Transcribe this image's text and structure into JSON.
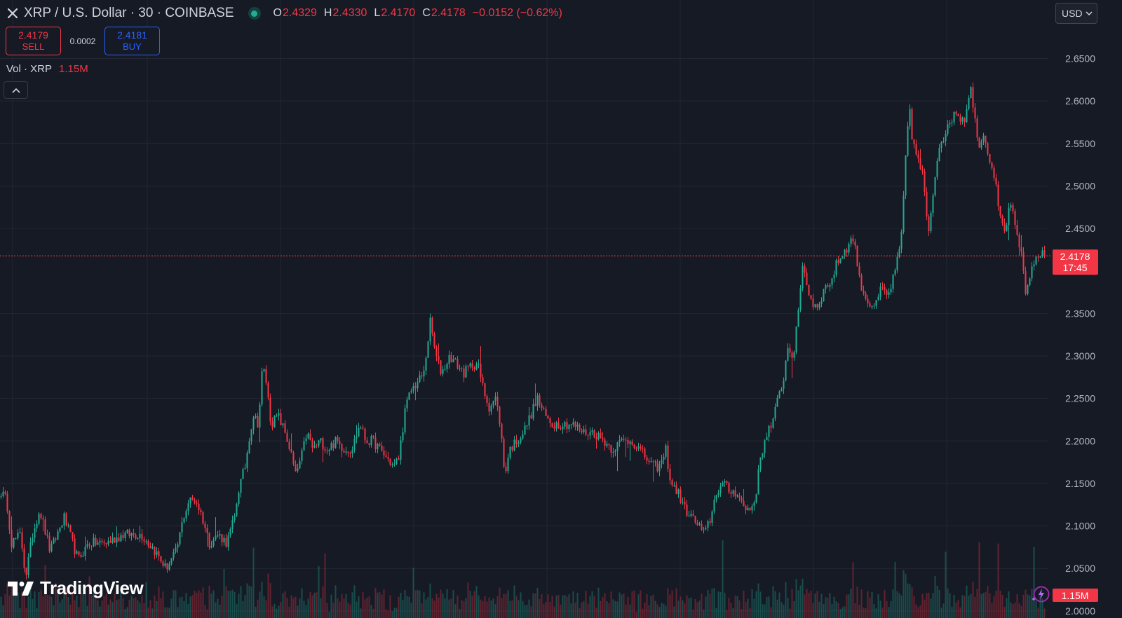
{
  "header": {
    "symbol_title": "XRP / U.S. Dollar · 30 · COINBASE",
    "ohlc": [
      {
        "key": "O",
        "value": "2.4329"
      },
      {
        "key": "H",
        "value": "2.4330"
      },
      {
        "key": "L",
        "value": "2.4170"
      },
      {
        "key": "C",
        "value": "2.4178"
      }
    ],
    "change": "−0.0152 (−0.62%)"
  },
  "trade": {
    "sell_price": "2.4179",
    "sell_label": "SELL",
    "spread": "0.0002",
    "buy_price": "2.4181",
    "buy_label": "BUY"
  },
  "volume": {
    "label": "Vol · XRP",
    "value": "1.15M"
  },
  "currency": "USD",
  "price_axis": {
    "ticks": [
      "2.6500",
      "2.6000",
      "2.5500",
      "2.5000",
      "2.4500",
      "2.3500",
      "2.3000",
      "2.2500",
      "2.2000",
      "2.1500",
      "2.1000",
      "2.0500",
      "2.0000"
    ],
    "current_price": "2.4178",
    "countdown": "17:45",
    "volume_badge": "1.15M"
  },
  "branding": "TradingView",
  "colors": {
    "background": "#161a25",
    "up": "#22ab94",
    "down": "#f23645",
    "buy": "#2962ff",
    "grid": "#232733"
  },
  "icons": {
    "symbol": "x-logo-icon",
    "status": "live-dot-icon",
    "collapse": "chevron-up-icon",
    "currency": "chevron-down-icon",
    "assistant": "bolt-icon"
  },
  "chart_data": {
    "type": "candlestick",
    "title": "XRP / U.S. Dollar · 30 · COINBASE",
    "ylim": [
      1.99,
      2.69
    ],
    "y_ticks": [
      2.0,
      2.05,
      2.1,
      2.15,
      2.2,
      2.25,
      2.3,
      2.35,
      2.45,
      2.5,
      2.55,
      2.6,
      2.65
    ],
    "current_price": 2.4178,
    "series": [
      {
        "name": "XRP",
        "anchors_close": [
          [
            0,
            2.14
          ],
          [
            8,
            2.13
          ],
          [
            15,
            2.08
          ],
          [
            28,
            2.09
          ],
          [
            35,
            2.04
          ],
          [
            45,
            2.09
          ],
          [
            55,
            2.12
          ],
          [
            70,
            2.07
          ],
          [
            90,
            2.11
          ],
          [
            110,
            2.06
          ],
          [
            125,
            2.08
          ],
          [
            150,
            2.08
          ],
          [
            175,
            2.09
          ],
          [
            200,
            2.09
          ],
          [
            220,
            2.07
          ],
          [
            235,
            2.05
          ],
          [
            250,
            2.07
          ],
          [
            260,
            2.11
          ],
          [
            268,
            2.13
          ],
          [
            278,
            2.13
          ],
          [
            287,
            2.11
          ],
          [
            297,
            2.08
          ],
          [
            310,
            2.09
          ],
          [
            322,
            2.08
          ],
          [
            333,
            2.11
          ],
          [
            338,
            2.14
          ],
          [
            348,
            2.17
          ],
          [
            355,
            2.21
          ],
          [
            360,
            2.23
          ],
          [
            367,
            2.22
          ],
          [
            373,
            2.29
          ],
          [
            378,
            2.27
          ],
          [
            385,
            2.22
          ],
          [
            395,
            2.23
          ],
          [
            405,
            2.21
          ],
          [
            412,
            2.19
          ],
          [
            420,
            2.16
          ],
          [
            428,
            2.18
          ],
          [
            436,
            2.21
          ],
          [
            445,
            2.19
          ],
          [
            455,
            2.2
          ],
          [
            465,
            2.19
          ],
          [
            478,
            2.2
          ],
          [
            490,
            2.19
          ],
          [
            500,
            2.19
          ],
          [
            512,
            2.22
          ],
          [
            520,
            2.2
          ],
          [
            530,
            2.2
          ],
          [
            540,
            2.19
          ],
          [
            550,
            2.18
          ],
          [
            560,
            2.17
          ],
          [
            567,
            2.18
          ],
          [
            577,
            2.24
          ],
          [
            585,
            2.26
          ],
          [
            595,
            2.27
          ],
          [
            603,
            2.28
          ],
          [
            612,
            2.34
          ],
          [
            620,
            2.3
          ],
          [
            628,
            2.28
          ],
          [
            640,
            2.3
          ],
          [
            650,
            2.29
          ],
          [
            660,
            2.28
          ],
          [
            672,
            2.29
          ],
          [
            680,
            2.29
          ],
          [
            688,
            2.26
          ],
          [
            696,
            2.24
          ],
          [
            705,
            2.25
          ],
          [
            712,
            2.22
          ],
          [
            718,
            2.16
          ],
          [
            725,
            2.19
          ],
          [
            735,
            2.2
          ],
          [
            745,
            2.21
          ],
          [
            755,
            2.23
          ],
          [
            765,
            2.25
          ],
          [
            775,
            2.23
          ],
          [
            785,
            2.22
          ],
          [
            800,
            2.22
          ],
          [
            815,
            2.22
          ],
          [
            830,
            2.21
          ],
          [
            845,
            2.21
          ],
          [
            860,
            2.2
          ],
          [
            872,
            2.19
          ],
          [
            885,
            2.2
          ],
          [
            900,
            2.2
          ],
          [
            910,
            2.19
          ],
          [
            920,
            2.18
          ],
          [
            930,
            2.17
          ],
          [
            940,
            2.17
          ],
          [
            948,
            2.19
          ],
          [
            955,
            2.15
          ],
          [
            965,
            2.14
          ],
          [
            975,
            2.12
          ],
          [
            985,
            2.11
          ],
          [
            995,
            2.1
          ],
          [
            1003,
            2.09
          ],
          [
            1012,
            2.11
          ],
          [
            1020,
            2.14
          ],
          [
            1030,
            2.15
          ],
          [
            1040,
            2.14
          ],
          [
            1050,
            2.14
          ],
          [
            1060,
            2.12
          ],
          [
            1068,
            2.12
          ],
          [
            1075,
            2.13
          ],
          [
            1083,
            2.18
          ],
          [
            1092,
            2.21
          ],
          [
            1100,
            2.22
          ],
          [
            1108,
            2.25
          ],
          [
            1115,
            2.27
          ],
          [
            1122,
            2.31
          ],
          [
            1130,
            2.3
          ],
          [
            1137,
            2.35
          ],
          [
            1143,
            2.41
          ],
          [
            1150,
            2.38
          ],
          [
            1158,
            2.36
          ],
          [
            1165,
            2.36
          ],
          [
            1175,
            2.38
          ],
          [
            1185,
            2.39
          ],
          [
            1192,
            2.41
          ],
          [
            1200,
            2.42
          ],
          [
            1208,
            2.43
          ],
          [
            1216,
            2.44
          ],
          [
            1224,
            2.39
          ],
          [
            1232,
            2.37
          ],
          [
            1240,
            2.36
          ],
          [
            1248,
            2.36
          ],
          [
            1255,
            2.38
          ],
          [
            1265,
            2.37
          ],
          [
            1275,
            2.4
          ],
          [
            1283,
            2.43
          ],
          [
            1290,
            2.53
          ],
          [
            1295,
            2.6
          ],
          [
            1300,
            2.55
          ],
          [
            1308,
            2.53
          ],
          [
            1315,
            2.51
          ],
          [
            1322,
            2.44
          ],
          [
            1330,
            2.5
          ],
          [
            1338,
            2.55
          ],
          [
            1345,
            2.56
          ],
          [
            1352,
            2.57
          ],
          [
            1360,
            2.59
          ],
          [
            1368,
            2.58
          ],
          [
            1375,
            2.58
          ],
          [
            1382,
            2.62
          ],
          [
            1388,
            2.58
          ],
          [
            1395,
            2.55
          ],
          [
            1403,
            2.56
          ],
          [
            1410,
            2.53
          ],
          [
            1418,
            2.51
          ],
          [
            1425,
            2.46
          ],
          [
            1432,
            2.45
          ],
          [
            1440,
            2.48
          ],
          [
            1448,
            2.44
          ],
          [
            1455,
            2.42
          ],
          [
            1462,
            2.37
          ],
          [
            1470,
            2.4
          ],
          [
            1478,
            2.42
          ],
          [
            1490,
            2.4178
          ]
        ]
      }
    ]
  }
}
